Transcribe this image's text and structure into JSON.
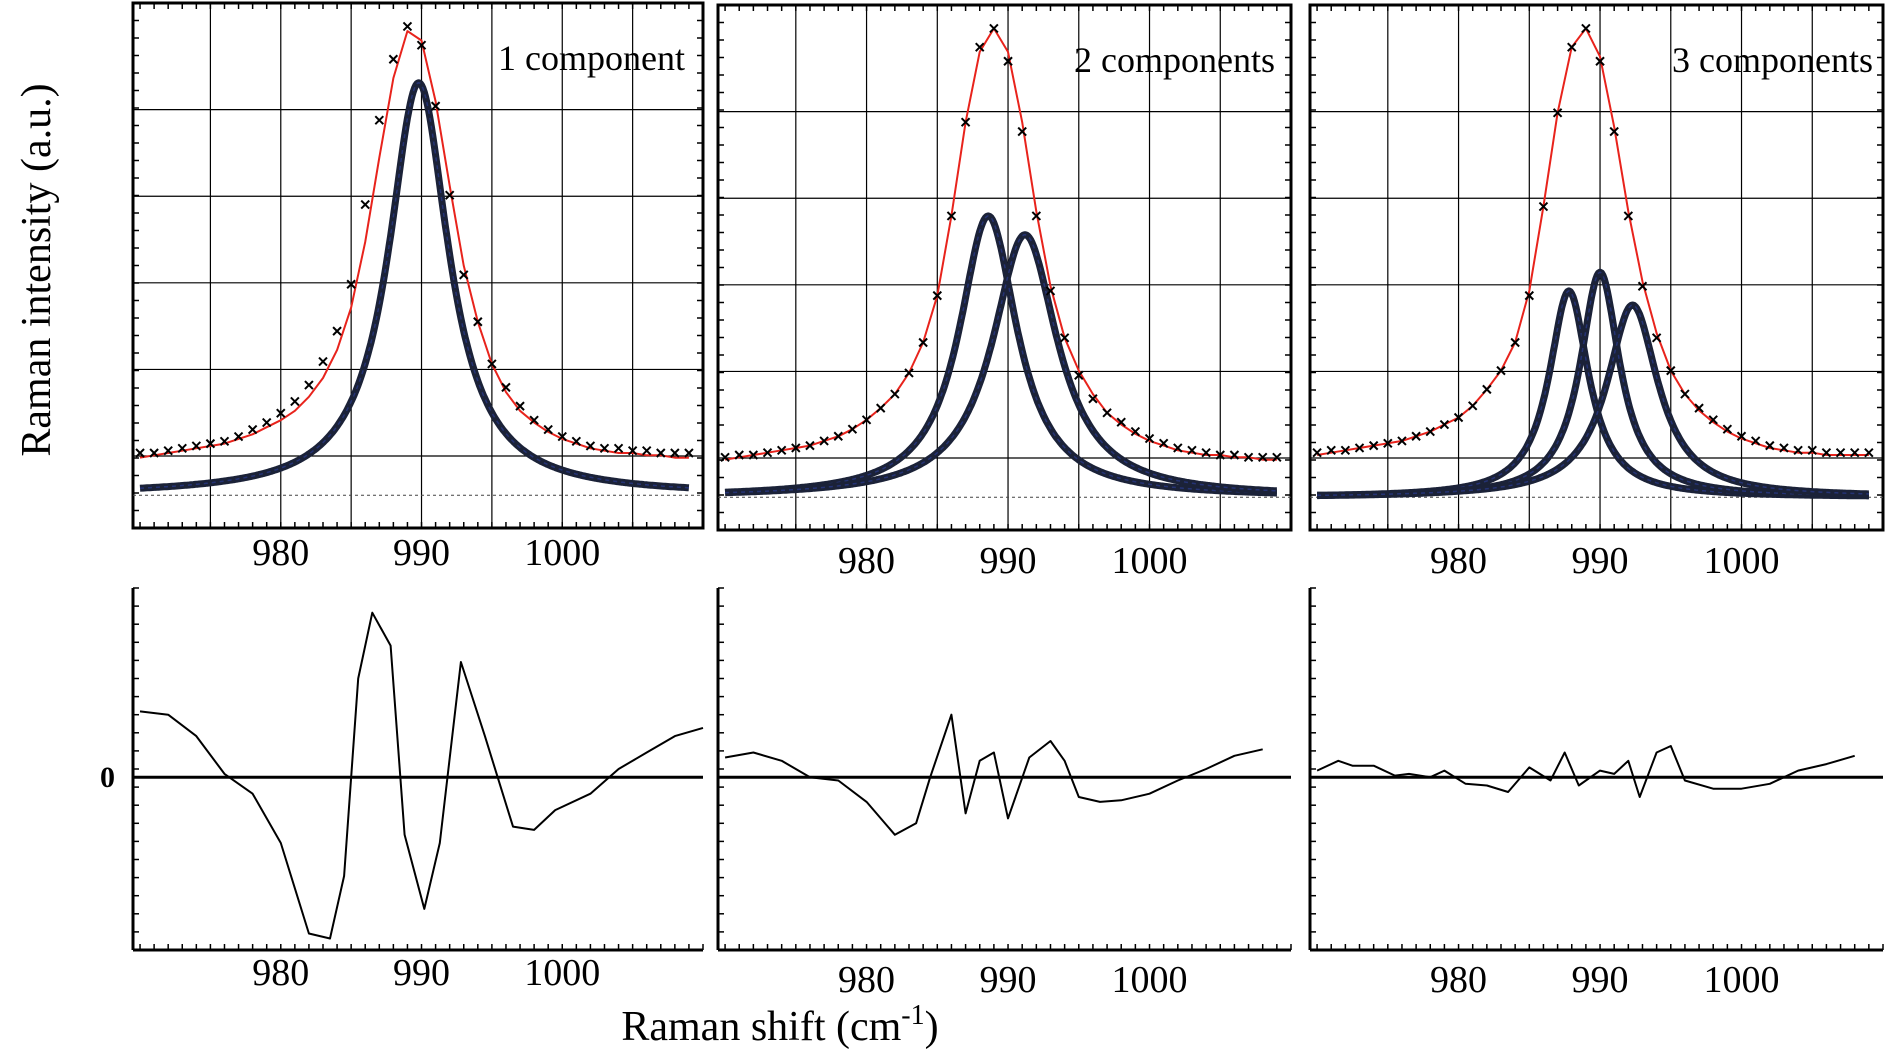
{
  "ylabel": "Raman intensity (a.u.)",
  "xlabel": "Raman shift (cm",
  "xlabel_sup": "-1",
  "xlabel_close": ")",
  "zero_label": "0",
  "xticks": [
    "980",
    "990",
    "1000"
  ],
  "colors": {
    "fit": "#e8231c",
    "component": "#1b2238",
    "component_edge": "#2a3b8f",
    "data": "#000000",
    "grid": "#000000"
  },
  "chart_data": [
    {
      "type": "line",
      "title": "1 component",
      "xlim": [
        969.5,
        1010
      ],
      "ylim": [
        -0.07,
        1.05
      ],
      "x": [
        970,
        971,
        972,
        973,
        974,
        975,
        976,
        977,
        978,
        979,
        980,
        981,
        982,
        983,
        984,
        985,
        986,
        987,
        988,
        989,
        990,
        991,
        992,
        993,
        994,
        995,
        996,
        997,
        998,
        999,
        1000,
        1001,
        1002,
        1003,
        1004,
        1005,
        1006,
        1007,
        1008,
        1009
      ],
      "markers": [
        0.09,
        0.09,
        0.095,
        0.1,
        0.105,
        0.11,
        0.115,
        0.125,
        0.14,
        0.155,
        0.175,
        0.2,
        0.235,
        0.285,
        0.35,
        0.45,
        0.62,
        0.8,
        0.93,
        1.0,
        0.96,
        0.83,
        0.64,
        0.47,
        0.37,
        0.28,
        0.23,
        0.19,
        0.16,
        0.14,
        0.125,
        0.115,
        0.105,
        0.1,
        0.1,
        0.095,
        0.095,
        0.09,
        0.09,
        0.09
      ],
      "fit": [
        0.08,
        0.085,
        0.09,
        0.095,
        0.1,
        0.105,
        0.11,
        0.12,
        0.13,
        0.145,
        0.16,
        0.18,
        0.21,
        0.25,
        0.31,
        0.4,
        0.54,
        0.72,
        0.89,
        0.99,
        0.97,
        0.84,
        0.66,
        0.49,
        0.37,
        0.28,
        0.22,
        0.18,
        0.155,
        0.135,
        0.12,
        0.11,
        0.1,
        0.095,
        0.09,
        0.09,
        0.085,
        0.085,
        0.08,
        0.08
      ],
      "components": [
        {
          "center": 989.8,
          "amplitude": 0.88,
          "hwhm": 2.6
        }
      ],
      "residual": {
        "ylim": [
          -1.05,
          1.15
        ],
        "x": [
          970,
          972,
          974,
          976,
          978,
          980,
          982,
          983.5,
          984.5,
          985.5,
          986.5,
          987.8,
          988.8,
          990.2,
          991.3,
          992.8,
          994.5,
          996.5,
          998,
          999.5,
          1002,
          1004,
          1006,
          1008,
          1010
        ],
        "values": [
          0.4,
          0.38,
          0.25,
          0.02,
          -0.1,
          -0.4,
          -0.95,
          -0.98,
          -0.6,
          0.6,
          1.0,
          0.8,
          -0.35,
          -0.8,
          -0.4,
          0.7,
          0.25,
          -0.3,
          -0.32,
          -0.2,
          -0.1,
          0.05,
          0.15,
          0.25,
          0.3
        ]
      }
    },
    {
      "type": "line",
      "title": "2 components",
      "xlim": [
        969.5,
        1010
      ],
      "ylim": [
        -0.07,
        1.05
      ],
      "x": [
        970,
        971,
        972,
        973,
        974,
        975,
        976,
        977,
        978,
        979,
        980,
        981,
        982,
        983,
        984,
        985,
        986,
        987,
        988,
        989,
        990,
        991,
        992,
        993,
        994,
        995,
        996,
        997,
        998,
        999,
        1000,
        1001,
        1002,
        1003,
        1004,
        1005,
        1006,
        1007,
        1008,
        1009
      ],
      "markers": [
        0.085,
        0.09,
        0.09,
        0.095,
        0.1,
        0.105,
        0.11,
        0.12,
        0.13,
        0.145,
        0.165,
        0.19,
        0.22,
        0.265,
        0.33,
        0.43,
        0.6,
        0.8,
        0.96,
        1.0,
        0.93,
        0.78,
        0.6,
        0.44,
        0.34,
        0.26,
        0.21,
        0.18,
        0.16,
        0.14,
        0.125,
        0.115,
        0.105,
        0.1,
        0.095,
        0.09,
        0.09,
        0.085,
        0.085,
        0.085
      ],
      "fit": [
        0.08,
        0.085,
        0.09,
        0.095,
        0.1,
        0.105,
        0.11,
        0.12,
        0.13,
        0.145,
        0.165,
        0.19,
        0.22,
        0.265,
        0.33,
        0.43,
        0.6,
        0.8,
        0.95,
        1.0,
        0.95,
        0.8,
        0.61,
        0.45,
        0.34,
        0.27,
        0.22,
        0.18,
        0.155,
        0.135,
        0.12,
        0.11,
        0.1,
        0.095,
        0.09,
        0.09,
        0.085,
        0.085,
        0.08,
        0.08
      ],
      "components": [
        {
          "center": 988.6,
          "amplitude": 0.6,
          "hwhm": 2.5
        },
        {
          "center": 991.2,
          "amplitude": 0.56,
          "hwhm": 2.8
        }
      ],
      "residual": {
        "ylim": [
          -1.05,
          1.15
        ],
        "x": [
          970,
          972,
          974,
          976,
          978,
          980,
          982,
          983.5,
          984.5,
          986,
          987,
          988,
          989,
          990,
          991.5,
          993,
          994,
          995,
          996.5,
          998,
          1000,
          1002,
          1004,
          1006,
          1008
        ],
        "values": [
          0.12,
          0.15,
          0.1,
          0.0,
          -0.02,
          -0.15,
          -0.35,
          -0.28,
          0.0,
          0.38,
          -0.22,
          0.1,
          0.15,
          -0.25,
          0.12,
          0.22,
          0.1,
          -0.12,
          -0.15,
          -0.14,
          -0.1,
          -0.02,
          0.05,
          0.13,
          0.17
        ]
      }
    },
    {
      "type": "line",
      "title": "3 components",
      "xlim": [
        969.5,
        1010
      ],
      "ylim": [
        -0.07,
        1.05
      ],
      "x": [
        970,
        971,
        972,
        973,
        974,
        975,
        976,
        977,
        978,
        979,
        980,
        981,
        982,
        983,
        984,
        985,
        986,
        987,
        988,
        989,
        990,
        991,
        992,
        993,
        994,
        995,
        996,
        997,
        998,
        999,
        1000,
        1001,
        1002,
        1003,
        1004,
        1005,
        1006,
        1007,
        1008,
        1009
      ],
      "markers": [
        0.095,
        0.1,
        0.1,
        0.105,
        0.11,
        0.115,
        0.12,
        0.13,
        0.14,
        0.155,
        0.17,
        0.195,
        0.23,
        0.27,
        0.33,
        0.43,
        0.62,
        0.82,
        0.96,
        1.0,
        0.93,
        0.78,
        0.6,
        0.45,
        0.34,
        0.27,
        0.22,
        0.19,
        0.165,
        0.145,
        0.13,
        0.12,
        0.11,
        0.105,
        0.1,
        0.1,
        0.095,
        0.095,
        0.095,
        0.095
      ],
      "fit": [
        0.09,
        0.095,
        0.1,
        0.105,
        0.11,
        0.115,
        0.12,
        0.13,
        0.14,
        0.155,
        0.17,
        0.195,
        0.23,
        0.27,
        0.33,
        0.44,
        0.62,
        0.82,
        0.96,
        1.0,
        0.94,
        0.79,
        0.61,
        0.46,
        0.35,
        0.27,
        0.22,
        0.185,
        0.16,
        0.14,
        0.125,
        0.115,
        0.105,
        0.1,
        0.095,
        0.095,
        0.09,
        0.09,
        0.09,
        0.09
      ],
      "components": [
        {
          "center": 987.8,
          "amplitude": 0.44,
          "hwhm": 1.7
        },
        {
          "center": 990.0,
          "amplitude": 0.48,
          "hwhm": 1.7
        },
        {
          "center": 992.3,
          "amplitude": 0.41,
          "hwhm": 2.2
        }
      ],
      "residual": {
        "ylim": [
          -1.05,
          1.15
        ],
        "x": [
          970,
          971.5,
          972.5,
          974,
          975.5,
          976.5,
          978,
          979,
          980.5,
          982,
          983.5,
          985,
          986.5,
          987.5,
          988.5,
          990,
          991,
          992,
          992.8,
          994,
          995,
          996,
          998,
          1000,
          1002,
          1004,
          1006,
          1008
        ],
        "values": [
          0.04,
          0.1,
          0.07,
          0.07,
          0.01,
          0.02,
          0.0,
          0.04,
          -0.04,
          -0.05,
          -0.09,
          0.06,
          -0.02,
          0.15,
          -0.05,
          0.04,
          0.02,
          0.1,
          -0.12,
          0.15,
          0.19,
          -0.02,
          -0.07,
          -0.07,
          -0.04,
          0.04,
          0.08,
          0.13
        ]
      }
    }
  ]
}
